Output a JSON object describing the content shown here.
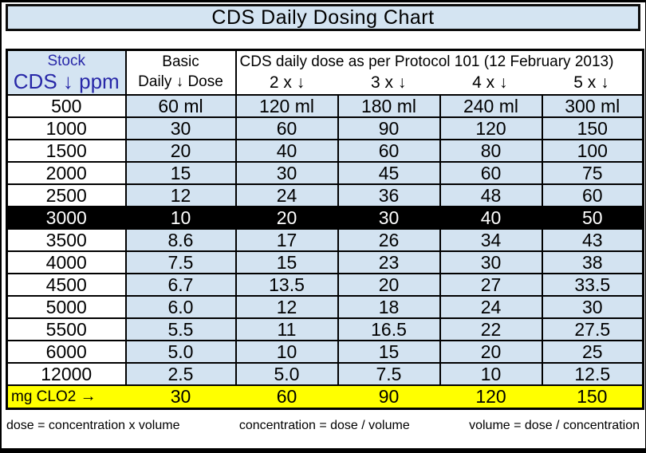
{
  "colors": {
    "banner_fill": "#d4e4f2",
    "cell_fill": "#d3e3f1",
    "header_blue_text": "#2828a8",
    "highlight_row_bg": "#000000",
    "highlight_row_text": "#ffffff",
    "summary_row_bg": "#ffff00",
    "border": "#000000"
  },
  "chart_data": {
    "type": "table",
    "title": "CDS Daily Dosing Chart",
    "column_groups": {
      "stock_top": "Stock",
      "stock_bottom": "CDS ↓ ppm",
      "basic_top": "Basic",
      "basic_bottom": "Daily ↓ Dose",
      "protocol_note": "CDS daily dose as per Protocol 101 (12 February 2013)",
      "multipliers": [
        "2 x ↓",
        "3 x ↓",
        "4 x ↓",
        "5 x ↓"
      ]
    },
    "rows": [
      {
        "stock": "500",
        "cells": [
          "60 ml",
          "120 ml",
          "180 ml",
          "240 ml",
          "300 ml"
        ],
        "highlight": null
      },
      {
        "stock": "1000",
        "cells": [
          "30",
          "60",
          "90",
          "120",
          "150"
        ],
        "highlight": null
      },
      {
        "stock": "1500",
        "cells": [
          "20",
          "40",
          "60",
          "80",
          "100"
        ],
        "highlight": null
      },
      {
        "stock": "2000",
        "cells": [
          "15",
          "30",
          "45",
          "60",
          "75"
        ],
        "highlight": null
      },
      {
        "stock": "2500",
        "cells": [
          "12",
          "24",
          "36",
          "48",
          "60"
        ],
        "highlight": null
      },
      {
        "stock": "3000",
        "cells": [
          "10",
          "20",
          "30",
          "40",
          "50"
        ],
        "highlight": "black"
      },
      {
        "stock": "3500",
        "cells": [
          "8.6",
          "17",
          "26",
          "34",
          "43"
        ],
        "highlight": null
      },
      {
        "stock": "4000",
        "cells": [
          "7.5",
          "15",
          "23",
          "30",
          "38"
        ],
        "highlight": null
      },
      {
        "stock": "4500",
        "cells": [
          "6.7",
          "13.5",
          "20",
          "27",
          "33.5"
        ],
        "highlight": null
      },
      {
        "stock": "5000",
        "cells": [
          "6.0",
          "12",
          "18",
          "24",
          "30"
        ],
        "highlight": null
      },
      {
        "stock": "5500",
        "cells": [
          "5.5",
          "11",
          "16.5",
          "22",
          "27.5"
        ],
        "highlight": null
      },
      {
        "stock": "6000",
        "cells": [
          "5.0",
          "10",
          "15",
          "20",
          "25"
        ],
        "highlight": null
      },
      {
        "stock": "12000",
        "cells": [
          "2.5",
          "5.0",
          "7.5",
          "10",
          "12.5"
        ],
        "highlight": null
      }
    ],
    "summary_row": {
      "label": "mg  CLO2",
      "arrow": "→",
      "cells": [
        "30",
        "60",
        "90",
        "120",
        "150"
      ]
    },
    "formulas": [
      "dose = concentration x volume",
      "concentration = dose / volume",
      "volume = dose / concentration"
    ]
  }
}
